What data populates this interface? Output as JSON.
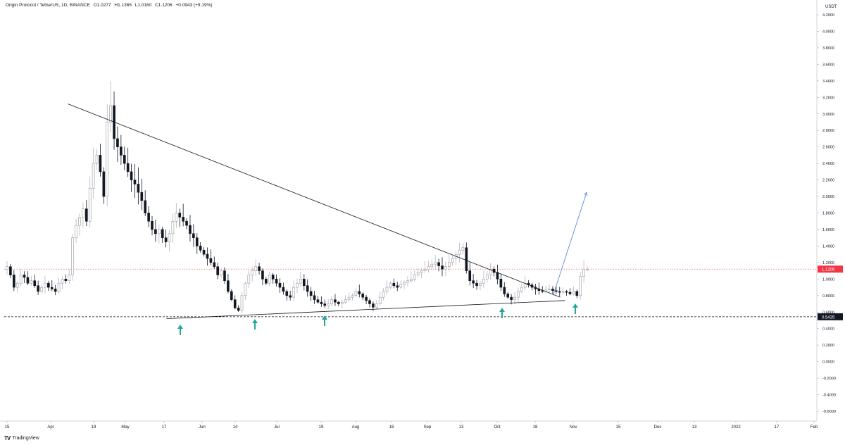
{
  "header": {
    "symbol": "Origin Protocol / TetherUS, 1D, BINANCE",
    "open": "O1.0277",
    "high": "H1.1365",
    "low": "L1.0160",
    "close": "C1.1206",
    "change": "+0.0943 (+9.19%)"
  },
  "footer": {
    "brand_logo": "TV",
    "brand_name": "TradingView"
  },
  "chart_data": {
    "type": "candlestick",
    "y_unit_label": "USDT",
    "ylim": [
      -0.7,
      4.3
    ],
    "y_ticks": [
      "4.2000",
      "4.0000",
      "3.8000",
      "3.6000",
      "3.4000",
      "3.2000",
      "3.0000",
      "2.8000",
      "2.6000",
      "2.4000",
      "2.2000",
      "2.0000",
      "1.8000",
      "1.6000",
      "1.4000",
      "1.2000",
      "1.0000",
      "0.8000",
      "0.6000",
      "0.4000",
      "0.2000",
      "0.0000",
      "-0.2000",
      "-0.4000",
      "-0.6000"
    ],
    "x_ticks": [
      "15",
      "Apr",
      "19",
      "May",
      "17",
      "Jun",
      "14",
      "Jul",
      "19",
      "Aug",
      "16",
      "Sep",
      "13",
      "Oct",
      "18",
      "Nov",
      "15",
      "Dec",
      "13",
      "2022",
      "17",
      "Feb"
    ],
    "x_range_days": [
      "2021-03-15",
      "2022-02-15"
    ],
    "last_price": {
      "value": 1.1206,
      "label": "1.1206",
      "color": "#f23645"
    },
    "support_level": {
      "value": 0.5435,
      "label": "0.5435"
    },
    "candles_close": [
      1.15,
      1.05,
      0.9,
      0.95,
      1.05,
      1.02,
      0.95,
      0.98,
      0.92,
      0.85,
      0.9,
      0.95,
      0.9,
      0.88,
      0.85,
      0.95,
      1.0,
      0.98,
      1.05,
      1.5,
      1.65,
      1.75,
      1.85,
      1.7,
      2.1,
      2.4,
      2.5,
      2.3,
      2.0,
      2.9,
      3.1,
      2.7,
      2.6,
      2.5,
      2.4,
      2.3,
      2.2,
      2.15,
      2.05,
      1.95,
      1.8,
      1.7,
      1.6,
      1.55,
      1.6,
      1.5,
      1.45,
      1.55,
      1.7,
      1.8,
      1.75,
      1.7,
      1.65,
      1.55,
      1.5,
      1.4,
      1.35,
      1.3,
      1.25,
      1.2,
      1.15,
      1.05,
      1.1,
      0.98,
      0.85,
      0.75,
      0.65,
      0.62,
      0.8,
      0.95,
      1.05,
      1.1,
      1.15,
      1.1,
      1.0,
      0.95,
      1.05,
      1.0,
      0.95,
      0.9,
      0.85,
      0.8,
      0.78,
      0.9,
      0.95,
      1.0,
      0.92,
      0.85,
      0.8,
      0.75,
      0.72,
      0.7,
      0.68,
      0.7,
      0.75,
      0.72,
      0.7,
      0.72,
      0.75,
      0.78,
      0.8,
      0.85,
      0.82,
      0.78,
      0.74,
      0.7,
      0.66,
      0.7,
      0.78,
      0.85,
      0.9,
      0.95,
      0.92,
      0.9,
      0.94,
      0.96,
      0.98,
      1.0,
      1.05,
      1.08,
      1.1,
      1.12,
      1.15,
      1.18,
      1.2,
      1.16,
      1.12,
      1.15,
      1.2,
      1.25,
      1.3,
      1.35,
      1.38,
      1.1,
      0.98,
      0.95,
      0.92,
      0.95,
      1.0,
      1.05,
      1.12,
      1.08,
      1.0,
      0.9,
      0.82,
      0.78,
      0.75,
      0.78,
      0.85,
      0.9,
      0.95,
      0.93,
      0.9,
      0.88,
      0.86,
      0.85,
      0.87,
      0.88,
      0.86,
      0.85,
      0.84,
      0.85,
      0.84,
      0.82,
      0.85,
      0.8,
      1.03,
      1.12,
      1.12
    ],
    "trendlines": [
      {
        "name": "descending-resistance",
        "from": [
          "2021-04-10",
          3.12
        ],
        "to": [
          "2021-11-01",
          0.78
        ]
      },
      {
        "name": "ascending-support",
        "from": [
          "2021-05-21",
          0.52
        ],
        "to": [
          "2021-11-03",
          0.74
        ]
      },
      {
        "name": "projection-arrow",
        "from": [
          "2021-10-29",
          0.8
        ],
        "to": [
          "2021-11-12",
          2.05
        ],
        "color": "#5b8fd6"
      }
    ],
    "up_arrows_dates": [
      "2021-05-28",
      "2021-06-28",
      "2021-07-19",
      "2021-09-28",
      "2021-10-28"
    ],
    "up_arrow_color": "#26a69a",
    "grid": false
  }
}
